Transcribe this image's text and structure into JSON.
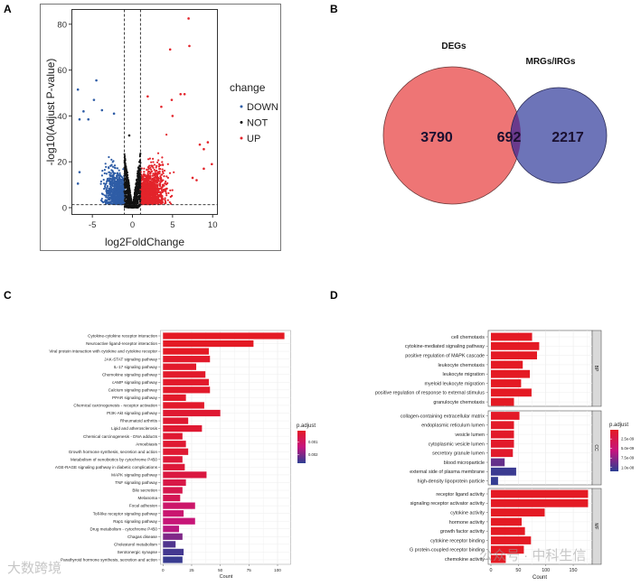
{
  "panel_labels": {
    "a": "A",
    "b": "B",
    "c": "C",
    "d": "D"
  },
  "watermarks": {
    "left": "大数跨境",
    "right": "公众号 · 中科生信"
  },
  "chart_data": [
    {
      "id": "A",
      "type": "scatter",
      "title": "",
      "xlabel": "log2FoldChange",
      "ylabel": "-log10(Adjust P-value)",
      "xlim": [
        -7.5,
        10.5
      ],
      "ylim": [
        -1,
        86
      ],
      "xticks": [
        "-5",
        "0",
        "5",
        "10"
      ],
      "xtick_values": [
        -5,
        0,
        5,
        10
      ],
      "yticks": [
        "0",
        "20",
        "40",
        "60",
        "80"
      ],
      "ytick_values": [
        0,
        20,
        40,
        60,
        80
      ],
      "thresholds": {
        "log2fc": [
          -1,
          1
        ],
        "neglog10p": 1.3
      },
      "legend": {
        "title": "change",
        "position": "right",
        "entries": [
          {
            "label": "DOWN",
            "color": "#2f5da6"
          },
          {
            "label": "NOT",
            "color": "#111111"
          },
          {
            "label": "UP",
            "color": "#e3242b"
          }
        ]
      },
      "highlight_points": [
        {
          "x": 7.0,
          "y": 82.5,
          "group": "UP"
        },
        {
          "x": 7.1,
          "y": 70.5,
          "group": "UP"
        },
        {
          "x": 4.7,
          "y": 69,
          "group": "UP"
        },
        {
          "x": 6.0,
          "y": 49.5,
          "group": "UP"
        },
        {
          "x": 6.5,
          "y": 49.5,
          "group": "UP"
        },
        {
          "x": 4.9,
          "y": 47,
          "group": "UP"
        },
        {
          "x": 1.9,
          "y": 48.5,
          "group": "UP"
        },
        {
          "x": 9.9,
          "y": 19,
          "group": "UP"
        },
        {
          "x": 9.4,
          "y": 28.5,
          "group": "UP"
        },
        {
          "x": 8.4,
          "y": 27.5,
          "group": "UP"
        },
        {
          "x": 8.9,
          "y": 25.5,
          "group": "UP"
        },
        {
          "x": 8.9,
          "y": 17,
          "group": "UP"
        },
        {
          "x": 8.0,
          "y": 12,
          "group": "UP"
        },
        {
          "x": 7.5,
          "y": 13,
          "group": "UP"
        },
        {
          "x": 5.0,
          "y": 40,
          "group": "UP"
        },
        {
          "x": 3.6,
          "y": 44,
          "group": "UP"
        },
        {
          "x": -4.5,
          "y": 55.5,
          "group": "DOWN"
        },
        {
          "x": -6.8,
          "y": 51.5,
          "group": "DOWN"
        },
        {
          "x": -4.8,
          "y": 47,
          "group": "DOWN"
        },
        {
          "x": -6.1,
          "y": 42,
          "group": "DOWN"
        },
        {
          "x": -3.8,
          "y": 42.5,
          "group": "DOWN"
        },
        {
          "x": -2.3,
          "y": 41,
          "group": "DOWN"
        },
        {
          "x": -6.6,
          "y": 38.5,
          "group": "DOWN"
        },
        {
          "x": -5.5,
          "y": 38.5,
          "group": "DOWN"
        },
        {
          "x": -6.8,
          "y": 10.5,
          "group": "DOWN"
        },
        {
          "x": -6.6,
          "y": 15.5,
          "group": "DOWN"
        },
        {
          "x": -0.4,
          "y": 31.5,
          "group": "NOT"
        }
      ],
      "group_counts_note_hidden": false
    },
    {
      "id": "B",
      "type": "venn",
      "sets": [
        {
          "label": "DEGs",
          "only": 3790,
          "color": "#ee7575"
        },
        {
          "label": "MRGs/IRGs",
          "only": 2217,
          "color": "#6870b6"
        }
      ],
      "intersection": 692,
      "intersection_color": "#6a3a8c"
    },
    {
      "id": "C",
      "type": "bar",
      "orientation": "horizontal",
      "xlabel": "Count",
      "xlim": [
        0,
        112
      ],
      "xticks": [
        "0",
        "25",
        "50",
        "75",
        "100"
      ],
      "xtick_values": [
        0,
        25,
        50,
        75,
        100
      ],
      "legend": {
        "title": "p.adjust",
        "ticks": [
          "0.001",
          "0.002"
        ],
        "tick_values": [
          0.001,
          0.002
        ],
        "range": [
          0.0001,
          0.0027
        ],
        "position": "right"
      },
      "categories": [
        "Cytokine-cytokine receptor interaction",
        "Neuroactive ligand-receptor interaction",
        "Viral protein interaction with cytokine and cytokine receptor",
        "JAK-STAT signaling pathway",
        "IL-17 signaling pathway",
        "Chemokine signaling pathway",
        "cAMP signaling pathway",
        "Calcium signaling pathway",
        "PPAR signaling pathway",
        "Chemical carcinogenesis - receptor activation",
        "PI3K-Akt signaling pathway",
        "Rheumatoid arthritis",
        "Lipid and atherosclerosis",
        "Chemical carcinogenesis - DNA adducts",
        "Amoebiasis",
        "Growth hormone synthesis, secretion and action",
        "Metabolism of xenobiotics by cytochrome P450",
        "AGE-RAGE signaling pathway in diabetic complications",
        "MAPK signaling pathway",
        "TNF signaling pathway",
        "Bile secretion",
        "Melanoma",
        "Focal adhesion",
        "Toll-like receptor signaling pathway",
        "Rap1 signaling pathway",
        "Drug metabolism - cytochrome P450",
        "Chagas disease",
        "Cholesterol metabolism",
        "Serotonergic synapse",
        "Parathyroid hormone synthesis, secretion and action"
      ],
      "values": [
        106,
        79,
        40,
        41,
        29,
        37,
        40,
        41,
        20,
        36,
        50,
        22,
        34,
        17,
        20,
        22,
        17,
        19,
        38,
        20,
        17,
        15,
        28,
        18,
        28,
        14,
        17,
        11,
        18,
        17
      ],
      "p_adjust": [
        0.0001,
        0.0001,
        0.0001,
        0.0002,
        0.0002,
        0.0002,
        0.0002,
        0.0002,
        0.0002,
        0.0002,
        0.0003,
        0.0003,
        0.0003,
        0.0003,
        0.0003,
        0.0003,
        0.0004,
        0.0004,
        0.0005,
        0.0006,
        0.0007,
        0.0008,
        0.0011,
        0.0012,
        0.0013,
        0.0015,
        0.002,
        0.0024,
        0.0025,
        0.0026
      ]
    },
    {
      "id": "D",
      "type": "bar",
      "orientation": "horizontal",
      "xlabel": "Count",
      "xlim": [
        0,
        190
      ],
      "xticks": [
        "0",
        "50",
        "100",
        "150"
      ],
      "xtick_values": [
        0,
        50,
        100,
        150
      ],
      "legend": {
        "title": "p.adjust",
        "ticks": [
          "2.5e-09",
          "5.0e-09",
          "7.5e-09",
          "1.0e-08"
        ],
        "tick_values": [
          2.5e-09,
          5e-09,
          7.5e-09,
          1e-08
        ],
        "range": [
          1e-10,
          1.1e-08
        ],
        "position": "right"
      },
      "facets": [
        {
          "label": "BP",
          "categories": [
            "cell chemotaxis",
            "cytokine-mediated signaling pathway",
            "positive regulation of MAPK cascade",
            "leukocyte chemotaxis",
            "leukocyte migration",
            "myeloid leukocyte migration",
            "positive regulation of response to external stimulus",
            "granulocyte chemotaxis"
          ],
          "values": [
            75,
            88,
            84,
            58,
            71,
            55,
            74,
            42
          ],
          "p_adjust": [
            1e-10,
            1e-10,
            1e-10,
            1e-10,
            1e-10,
            1e-10,
            1e-10,
            1e-10
          ]
        },
        {
          "label": "CC",
          "categories": [
            "collagen-containing extracellular matrix",
            "endoplasmic reticulum lumen",
            "vesicle lumen",
            "cytoplasmic vesicle lumen",
            "secretory granule lumen",
            "blood microparticle",
            "external side of plasma membrane",
            "high-density lipoprotein particle"
          ],
          "values": [
            52,
            42,
            42,
            42,
            40,
            25,
            46,
            13
          ],
          "p_adjust": [
            3e-10,
            4e-10,
            4e-10,
            5e-10,
            6e-10,
            9e-09,
            1.05e-08,
            1.07e-08
          ]
        },
        {
          "label": "MF",
          "categories": [
            "receptor ligand activity",
            "signaling receptor activator activity",
            "cytokine activity",
            "hormone activity",
            "growth factor activity",
            "cytokine receptor binding",
            "G protein-coupled receptor binding",
            "chemokine activity"
          ],
          "values": [
            177,
            177,
            98,
            56,
            62,
            73,
            60,
            27
          ],
          "p_adjust": [
            1e-10,
            1e-10,
            1e-10,
            1e-10,
            1e-10,
            1e-10,
            1e-10,
            1e-10
          ]
        }
      ]
    }
  ]
}
